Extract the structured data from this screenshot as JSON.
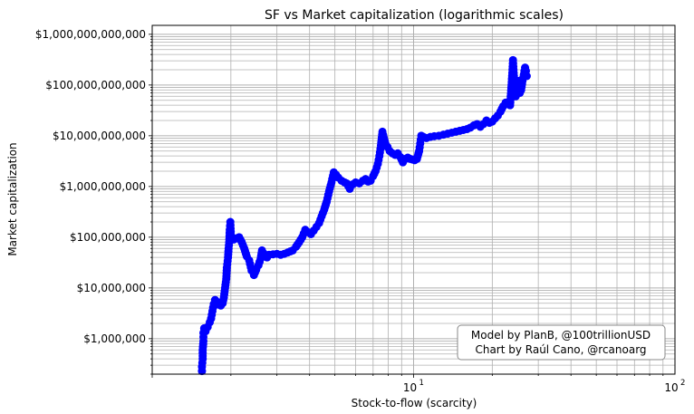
{
  "chart_data": {
    "type": "scatter",
    "title": "SF vs Market capitalization (logarithmic scales)",
    "xlabel": "Stock-to-flow (scarcity)",
    "ylabel": "Market capitalization",
    "x_scale": "log",
    "y_scale": "log",
    "xlim": [
      1.0,
      100
    ],
    "ylim": [
      200000,
      1500000000000
    ],
    "grid": true,
    "x_ticks": [
      {
        "value": 10,
        "label": "10",
        "sup": "1"
      },
      {
        "value": 100,
        "label": "10",
        "sup": "2"
      }
    ],
    "y_ticks": [
      {
        "value": 1000000,
        "label": "$1,000,000"
      },
      {
        "value": 10000000,
        "label": "$10,000,000"
      },
      {
        "value": 100000000,
        "label": "$100,000,000"
      },
      {
        "value": 1000000000,
        "label": "$1,000,000,000"
      },
      {
        "value": 10000000000,
        "label": "$10,000,000,000"
      },
      {
        "value": 100000000000,
        "label": "$100,000,000,000"
      },
      {
        "value": 1000000000000,
        "label": "$1,000,000,000,000"
      }
    ],
    "marker_color": "#0000ff",
    "annotation": [
      "Model by PlanB, @100trillionUSD",
      "Chart by Raúl Cano, @rcanoarg"
    ],
    "annotation_position": "bottom-right",
    "points": [
      [
        1.55,
        230000
      ],
      [
        1.55,
        280000
      ],
      [
        1.56,
        400000
      ],
      [
        1.56,
        600000
      ],
      [
        1.57,
        900000
      ],
      [
        1.57,
        1300000
      ],
      [
        1.58,
        1600000
      ],
      [
        1.6,
        1400000
      ],
      [
        1.63,
        1700000
      ],
      [
        1.66,
        2100000
      ],
      [
        1.68,
        2500000
      ],
      [
        1.7,
        3500000
      ],
      [
        1.72,
        4800000
      ],
      [
        1.74,
        5800000
      ],
      [
        1.77,
        5300000
      ],
      [
        1.8,
        4700000
      ],
      [
        1.83,
        4500000
      ],
      [
        1.86,
        5000000
      ],
      [
        1.88,
        6500000
      ],
      [
        1.9,
        10000000
      ],
      [
        1.92,
        15000000
      ],
      [
        1.93,
        25000000
      ],
      [
        1.95,
        40000000
      ],
      [
        1.96,
        60000000
      ],
      [
        1.97,
        80000000
      ],
      [
        1.98,
        140000000
      ],
      [
        1.99,
        200000000
      ],
      [
        2.0,
        110000000
      ],
      [
        2.05,
        90000000
      ],
      [
        2.1,
        95000000
      ],
      [
        2.15,
        100000000
      ],
      [
        2.2,
        80000000
      ],
      [
        2.25,
        60000000
      ],
      [
        2.3,
        42000000
      ],
      [
        2.35,
        35000000
      ],
      [
        2.4,
        22000000
      ],
      [
        2.45,
        18000000
      ],
      [
        2.5,
        23000000
      ],
      [
        2.55,
        28000000
      ],
      [
        2.6,
        38000000
      ],
      [
        2.63,
        55000000
      ],
      [
        2.67,
        48000000
      ],
      [
        2.7,
        42000000
      ],
      [
        2.75,
        40000000
      ],
      [
        2.8,
        45000000
      ],
      [
        2.9,
        46000000
      ],
      [
        3.0,
        47000000
      ],
      [
        3.1,
        45000000
      ],
      [
        3.2,
        47000000
      ],
      [
        3.3,
        50000000
      ],
      [
        3.45,
        55000000
      ],
      [
        3.55,
        65000000
      ],
      [
        3.65,
        80000000
      ],
      [
        3.75,
        100000000
      ],
      [
        3.85,
        140000000
      ],
      [
        3.95,
        125000000
      ],
      [
        4.05,
        115000000
      ],
      [
        4.15,
        135000000
      ],
      [
        4.25,
        160000000
      ],
      [
        4.35,
        190000000
      ],
      [
        4.45,
        260000000
      ],
      [
        4.55,
        350000000
      ],
      [
        4.65,
        500000000
      ],
      [
        4.75,
        800000000
      ],
      [
        4.85,
        1200000000
      ],
      [
        4.95,
        1900000000
      ],
      [
        5.05,
        1700000000
      ],
      [
        5.15,
        1500000000
      ],
      [
        5.3,
        1300000000
      ],
      [
        5.45,
        1200000000
      ],
      [
        5.55,
        1150000000
      ],
      [
        5.7,
        900000000
      ],
      [
        5.85,
        1100000000
      ],
      [
        6.0,
        1200000000
      ],
      [
        6.2,
        1150000000
      ],
      [
        6.4,
        1300000000
      ],
      [
        6.55,
        1400000000
      ],
      [
        6.7,
        1250000000
      ],
      [
        6.85,
        1300000000
      ],
      [
        7.0,
        1600000000
      ],
      [
        7.15,
        2000000000
      ],
      [
        7.3,
        2800000000
      ],
      [
        7.4,
        4000000000
      ],
      [
        7.5,
        6500000000
      ],
      [
        7.6,
        12000000000
      ],
      [
        7.7,
        9000000000
      ],
      [
        7.8,
        7000000000
      ],
      [
        7.95,
        6000000000
      ],
      [
        8.1,
        5000000000
      ],
      [
        8.3,
        4500000000
      ],
      [
        8.5,
        4200000000
      ],
      [
        8.7,
        4500000000
      ],
      [
        8.9,
        3800000000
      ],
      [
        9.1,
        3000000000
      ],
      [
        9.3,
        3500000000
      ],
      [
        9.5,
        3700000000
      ],
      [
        9.7,
        3500000000
      ],
      [
        9.9,
        3400000000
      ],
      [
        10.1,
        3300000000
      ],
      [
        10.3,
        3500000000
      ],
      [
        10.5,
        5000000000
      ],
      [
        10.6,
        7000000000
      ],
      [
        10.7,
        10000000000
      ],
      [
        10.9,
        9500000000
      ],
      [
        11.2,
        9000000000
      ],
      [
        11.6,
        9500000000
      ],
      [
        12.0,
        9800000000
      ],
      [
        12.5,
        10000000000
      ],
      [
        13.0,
        10500000000
      ],
      [
        13.5,
        11000000000
      ],
      [
        14.0,
        11500000000
      ],
      [
        14.5,
        12000000000
      ],
      [
        15.0,
        12500000000
      ],
      [
        15.5,
        13000000000
      ],
      [
        16.0,
        13500000000
      ],
      [
        16.5,
        14500000000
      ],
      [
        17.0,
        16000000000
      ],
      [
        17.5,
        17000000000
      ],
      [
        18.0,
        15000000000
      ],
      [
        18.5,
        17000000000
      ],
      [
        19.0,
        20000000000
      ],
      [
        19.5,
        18000000000
      ],
      [
        20.0,
        19000000000
      ],
      [
        20.5,
        22000000000
      ],
      [
        21.0,
        25000000000
      ],
      [
        21.5,
        30000000000
      ],
      [
        22.0,
        38000000000
      ],
      [
        22.5,
        45000000000
      ],
      [
        23.0,
        42000000000
      ],
      [
        23.4,
        40000000000
      ],
      [
        23.7,
        100000000000
      ],
      [
        23.9,
        200000000000
      ],
      [
        24.0,
        310000000000
      ],
      [
        24.2,
        150000000000
      ],
      [
        24.4,
        80000000000
      ],
      [
        24.6,
        60000000000
      ],
      [
        24.9,
        80000000000
      ],
      [
        25.2,
        120000000000
      ],
      [
        25.5,
        70000000000
      ],
      [
        25.8,
        80000000000
      ],
      [
        26.1,
        120000000000
      ],
      [
        26.4,
        160000000000
      ],
      [
        26.7,
        220000000000
      ],
      [
        26.9,
        190000000000
      ],
      [
        27.1,
        150000000000
      ]
    ]
  }
}
